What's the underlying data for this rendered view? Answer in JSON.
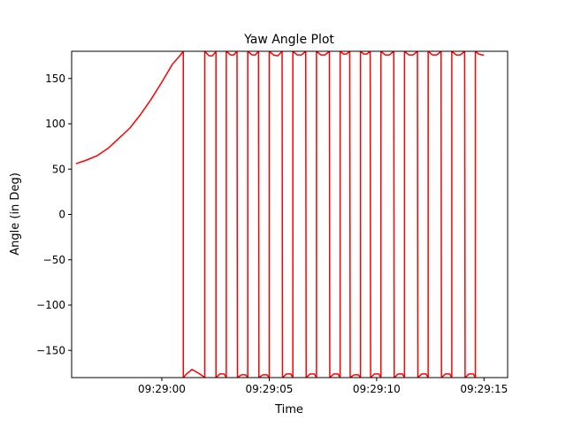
{
  "chart_data": {
    "type": "line",
    "title": "Yaw Angle Plot",
    "xlabel": "Time",
    "ylabel": "Angle (in Deg)",
    "x_ticks": [
      "09:29:00",
      "09:29:05",
      "09:29:10",
      "09:29:15"
    ],
    "y_ticks": [
      -150,
      -100,
      -50,
      0,
      50,
      100,
      150
    ],
    "xlim": [
      "09:28:55.8",
      "09:29:16.1"
    ],
    "ylim": [
      -180,
      180
    ],
    "grid": false,
    "series": [
      {
        "color": "#ff0000",
        "x": [
          "09:28:56.0",
          "09:28:56.5",
          "09:28:57.0",
          "09:28:57.5",
          "09:28:58.0",
          "09:28:58.5",
          "09:28:59.0",
          "09:28:59.5",
          "09:29:00.0",
          "09:29:00.5",
          "09:29:00.8",
          "09:29:01.0",
          "09:29:01.0",
          "09:29:01.15",
          "09:29:01.4",
          "09:29:01.7",
          "09:29:01.95",
          "09:29:02.0",
          "09:29:02.0",
          "09:29:02.2",
          "09:29:02.35",
          "09:29:02.5",
          "09:29:02.52",
          "09:29:02.52",
          "09:29:02.7",
          "09:29:02.9",
          "09:29:03.0",
          "09:29:03.0",
          "09:29:03.2",
          "09:29:03.35",
          "09:29:03.5",
          "09:29:03.52",
          "09:29:03.52",
          "09:29:03.7",
          "09:29:03.9",
          "09:29:04.0",
          "09:29:04.0",
          "09:29:04.2",
          "09:29:04.35",
          "09:29:04.5",
          "09:29:04.52",
          "09:29:04.52",
          "09:29:04.7",
          "09:29:04.9",
          "09:29:05.0",
          "09:29:05.0",
          "09:29:05.2",
          "09:29:05.4",
          "09:29:05.6",
          "09:29:05.62",
          "09:29:05.62",
          "09:29:05.8",
          "09:29:06.0",
          "09:29:06.1",
          "09:29:06.1",
          "09:29:06.3",
          "09:29:06.5",
          "09:29:06.7",
          "09:29:06.72",
          "09:29:06.72",
          "09:29:06.9",
          "09:29:07.1",
          "09:29:07.2",
          "09:29:07.2",
          "09:29:07.4",
          "09:29:07.6",
          "09:29:07.8",
          "09:29:07.82",
          "09:29:07.82",
          "09:29:08.0",
          "09:29:08.2",
          "09:29:08.3",
          "09:29:08.3",
          "09:29:08.45",
          "09:29:08.6",
          "09:29:08.75",
          "09:29:08.77",
          "09:29:08.77",
          "09:29:08.95",
          "09:29:09.15",
          "09:29:09.25",
          "09:29:09.25",
          "09:29:09.4",
          "09:29:09.55",
          "09:29:09.7",
          "09:29:09.72",
          "09:29:09.72",
          "09:29:09.9",
          "09:29:10.1",
          "09:29:10.2",
          "09:29:10.2",
          "09:29:10.4",
          "09:29:10.6",
          "09:29:10.8",
          "09:29:10.82",
          "09:29:10.82",
          "09:29:11.0",
          "09:29:11.2",
          "09:29:11.3",
          "09:29:11.3",
          "09:29:11.5",
          "09:29:11.7",
          "09:29:11.9",
          "09:29:11.92",
          "09:29:11.92",
          "09:29:12.1",
          "09:29:12.3",
          "09:29:12.4",
          "09:29:12.4",
          "09:29:12.6",
          "09:29:12.8",
          "09:29:13.0",
          "09:29:13.02",
          "09:29:13.02",
          "09:29:13.2",
          "09:29:13.4",
          "09:29:13.5",
          "09:29:13.5",
          "09:29:13.7",
          "09:29:13.9",
          "09:29:14.1",
          "09:29:14.12",
          "09:29:14.12",
          "09:29:14.3",
          "09:29:14.5",
          "09:29:14.6",
          "09:29:14.6",
          "09:29:14.75",
          "09:29:14.9",
          "09:29:15.0"
        ],
        "y": [
          56,
          60,
          65,
          73,
          84,
          95,
          110,
          127,
          146,
          166,
          174,
          180,
          -180,
          -176,
          -171,
          -175,
          -179,
          -180,
          180,
          175,
          175,
          179,
          180,
          -180,
          -176,
          -176,
          -180,
          180,
          176,
          176,
          180,
          -180,
          -180,
          -177,
          -177,
          -180,
          180,
          176,
          176,
          180,
          -180,
          -180,
          -177,
          -177,
          -180,
          180,
          176,
          175,
          180,
          -180,
          -180,
          -176,
          -176,
          -180,
          180,
          176,
          176,
          180,
          -180,
          -180,
          -176,
          -176,
          -180,
          180,
          176,
          176,
          180,
          -180,
          -180,
          -176,
          -176,
          -180,
          180,
          177,
          177,
          180,
          -180,
          -180,
          -177,
          -177,
          -180,
          180,
          177,
          177,
          180,
          -180,
          -180,
          -176,
          -176,
          -180,
          180,
          176,
          176,
          180,
          -180,
          -180,
          -176,
          -176,
          -180,
          180,
          176,
          176,
          180,
          -180,
          -180,
          -176,
          -176,
          -180,
          180,
          176,
          176,
          180,
          -180,
          -180,
          -176,
          -176,
          -180,
          180,
          176,
          176,
          180,
          -180,
          -180,
          -176,
          -176,
          -180,
          180,
          177,
          176,
          176
        ]
      }
    ]
  }
}
